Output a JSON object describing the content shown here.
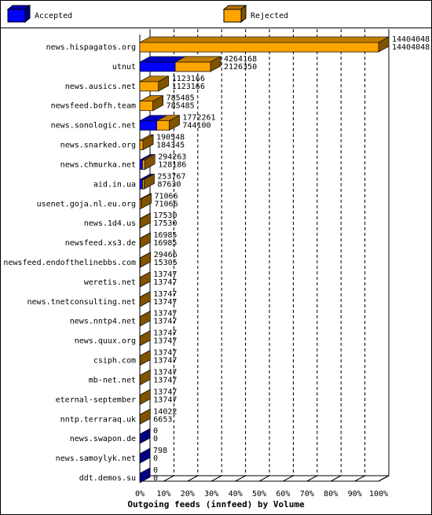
{
  "chart_data": {
    "type": "bar3d",
    "title": "Outgoing feeds (innfeed) by Volume",
    "categories": [
      "news.hispagatos.org",
      "utnut",
      "news.ausics.net",
      "newsfeed.bofh.team",
      "news.sonologic.net",
      "news.snarked.org",
      "news.chmurka.net",
      "aid.in.ua",
      "usenet.goja.nl.eu.org",
      "news.1d4.us",
      "newsfeed.xs3.de",
      "newsfeed.endofthelinebbs.com",
      "weretis.net",
      "news.tnetconsulting.net",
      "news.nntp4.net",
      "news.quux.org",
      "csiph.com",
      "mb-net.net",
      "eternal-september",
      "nntp.terraraq.uk",
      "news.swapon.de",
      "news.samoylyk.net",
      "ddt.demos.su"
    ],
    "series": [
      {
        "name": "Accepted",
        "color": "#0000ff",
        "values": [
          14404048,
          4264168,
          1123166,
          785485,
          1772261,
          190548,
          294263,
          253767,
          71066,
          17530,
          16985,
          29466,
          13747,
          13747,
          13747,
          13747,
          13747,
          13747,
          13747,
          14022,
          0,
          798,
          0
        ]
      },
      {
        "name": "Rejected",
        "color": "#ffa500",
        "values": [
          14404048,
          2126350,
          1123166,
          785485,
          744100,
          184345,
          128186,
          87630,
          71066,
          17530,
          16985,
          15305,
          13747,
          13747,
          13747,
          13747,
          13747,
          13747,
          13747,
          6653,
          0,
          0,
          0
        ]
      }
    ],
    "xlim": [
      0,
      100
    ],
    "xticks": [
      {
        "value": 0,
        "label": "0%"
      },
      {
        "value": 10,
        "label": "10%"
      },
      {
        "value": 20,
        "label": "20%"
      },
      {
        "value": 30,
        "label": "30%"
      },
      {
        "value": 40,
        "label": "40%"
      },
      {
        "value": 50,
        "label": "50%"
      },
      {
        "value": 60,
        "label": "60%"
      },
      {
        "value": 70,
        "label": "70%"
      },
      {
        "value": 80,
        "label": "80%"
      },
      {
        "value": 90,
        "label": "90%"
      },
      {
        "value": 100,
        "label": "100%"
      }
    ],
    "grid": true
  }
}
